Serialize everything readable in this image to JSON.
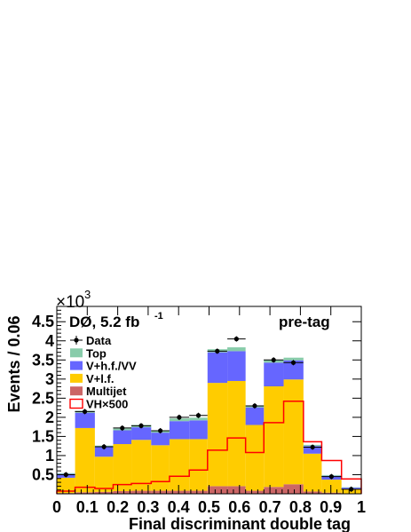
{
  "chart_data": {
    "type": "bar",
    "stacked": true,
    "xlabel": "Final discriminant double tag",
    "ylabel": "Events / 0.06",
    "y_multiplier": "×10",
    "y_multiplier_exp": "3",
    "experiment_label": "DØ, 5.2 fb",
    "experiment_label_exp": "-1",
    "region_label": "pre-tag",
    "xlim": [
      0,
      1
    ],
    "ylim": [
      0,
      4.9
    ],
    "x_ticks": [
      "0",
      "0.1",
      "0.2",
      "0.3",
      "0.4",
      "0.5",
      "0.6",
      "0.7",
      "0.8",
      "0.9",
      "1"
    ],
    "y_ticks": [
      "0.5",
      "1",
      "1.5",
      "2",
      "2.5",
      "3",
      "3.5",
      "4",
      "4.5"
    ],
    "bin_edges": [
      0,
      0.06,
      0.125,
      0.185,
      0.245,
      0.31,
      0.37,
      0.435,
      0.495,
      0.56,
      0.62,
      0.68,
      0.745,
      0.81,
      0.87,
      0.935,
      1
    ],
    "series": [
      {
        "name": "Multijet",
        "color": "#cc6666",
        "values": [
          0.02,
          0.04,
          0.05,
          0.07,
          0.08,
          0.08,
          0.08,
          0.08,
          0.2,
          0.2,
          0.08,
          0.18,
          0.25,
          0.06,
          0.03,
          0.01
        ]
      },
      {
        "name": "V+l.f.",
        "color": "#ffcc00",
        "values": [
          0.4,
          1.68,
          0.92,
          1.23,
          1.33,
          1.19,
          1.35,
          1.35,
          2.7,
          2.75,
          1.72,
          2.63,
          2.74,
          0.99,
          0.34,
          0.12
        ]
      },
      {
        "name": "V+h.f./VV",
        "color": "#6666ff",
        "values": [
          0.1,
          0.4,
          0.25,
          0.36,
          0.33,
          0.33,
          0.47,
          0.49,
          0.8,
          0.78,
          0.46,
          0.62,
          0.5,
          0.2,
          0.1,
          0.03
        ]
      },
      {
        "name": "Top",
        "color": "#88ccaa",
        "values": [
          0.02,
          0.05,
          0.04,
          0.05,
          0.06,
          0.06,
          0.07,
          0.07,
          0.08,
          0.1,
          0.05,
          0.07,
          0.07,
          0.03,
          0.02,
          0.01
        ]
      }
    ],
    "signal": {
      "name": "VH×500",
      "color": "#ff0000",
      "values": [
        0.07,
        0.17,
        0.14,
        0.24,
        0.27,
        0.32,
        0.46,
        0.62,
        1.14,
        1.46,
        1.08,
        1.86,
        2.42,
        1.36,
        0.87,
        0.39
      ]
    },
    "data_points": {
      "name": "Data",
      "x": [
        0.03,
        0.092,
        0.155,
        0.215,
        0.277,
        0.34,
        0.402,
        0.465,
        0.527,
        0.59,
        0.65,
        0.712,
        0.777,
        0.84,
        0.902,
        0.967
      ],
      "y": [
        0.5,
        2.15,
        1.23,
        1.72,
        1.78,
        1.65,
        2.0,
        2.05,
        3.73,
        4.05,
        2.3,
        3.5,
        3.43,
        1.22,
        0.45,
        0.12
      ]
    },
    "legend": [
      "Data",
      "Top",
      "V+h.f./VV",
      "V+l.f.",
      "Multijet",
      "VH×500"
    ],
    "legend_position": "top-left"
  }
}
